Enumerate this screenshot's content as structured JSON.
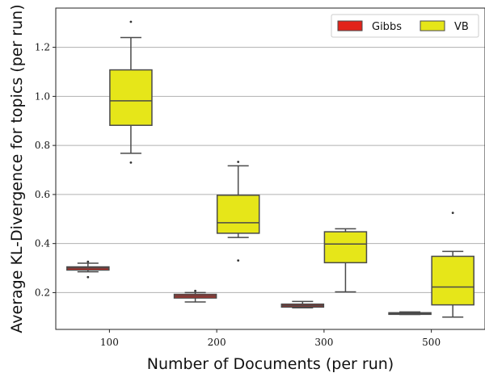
{
  "chart_data": {
    "type": "box",
    "title": "",
    "xlabel": "Number of Documents (per run)",
    "ylabel": "Average KL-Divergence for topics (per run)",
    "categories": [
      "100",
      "200",
      "300",
      "500"
    ],
    "ylim": [
      0.05,
      1.36
    ],
    "yticks": [
      0.2,
      0.4,
      0.6,
      0.8,
      1.0,
      1.2
    ],
    "ytick_labels": [
      "0.2",
      "0.4",
      "0.6",
      "0.8",
      "1.0",
      "1.2"
    ],
    "grid": "horizontal",
    "legend_position": "top-right",
    "series": [
      {
        "name": "Gibbs",
        "color": "#e2231a",
        "boxes": [
          {
            "whislo": 0.285,
            "q1": 0.292,
            "med": 0.3,
            "q3": 0.305,
            "whishi": 0.32,
            "fliers": [
              0.263,
              0.326
            ]
          },
          {
            "whislo": 0.162,
            "q1": 0.178,
            "med": 0.186,
            "q3": 0.193,
            "whishi": 0.2,
            "fliers": [
              0.207
            ]
          },
          {
            "whislo": 0.138,
            "q1": 0.141,
            "med": 0.147,
            "q3": 0.153,
            "whishi": 0.164,
            "fliers": []
          },
          {
            "whislo": 0.111,
            "q1": 0.112,
            "med": 0.115,
            "q3": 0.118,
            "whishi": 0.121,
            "fliers": []
          }
        ]
      },
      {
        "name": "VB",
        "color": "#e6e619",
        "boxes": [
          {
            "whislo": 0.768,
            "q1": 0.882,
            "med": 0.982,
            "q3": 1.108,
            "whishi": 1.24,
            "fliers": [
              0.73,
              1.304
            ]
          },
          {
            "whislo": 0.425,
            "q1": 0.442,
            "med": 0.485,
            "q3": 0.597,
            "whishi": 0.717,
            "fliers": [
              0.331,
              0.733
            ]
          },
          {
            "whislo": 0.203,
            "q1": 0.322,
            "med": 0.398,
            "q3": 0.448,
            "whishi": 0.46,
            "fliers": []
          },
          {
            "whislo": 0.1,
            "q1": 0.15,
            "med": 0.223,
            "q3": 0.348,
            "whishi": 0.368,
            "fliers": [
              0.525
            ]
          }
        ]
      }
    ]
  }
}
